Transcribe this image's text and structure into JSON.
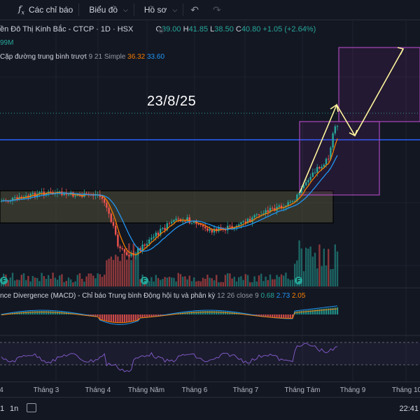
{
  "toolbar": {
    "indicators_label": "Các chỉ báo",
    "chart_type_label": "Biểu đồ",
    "profile_label": "Hồ sơ"
  },
  "legend": {
    "title": "ền Đô Thị Kinh Bắc - CTCP · 1D · HSX",
    "o_label": "O",
    "o_value": "39.00",
    "h_label": "H",
    "h_value": "41.85",
    "l_label": "L",
    "l_value": "38.50",
    "c_label": "C",
    "c_value": "40.80",
    "change": "+1.05 (+2.64%)"
  },
  "volume_text": "99M",
  "ma": {
    "label": "Cặp đường trung bình trượt",
    "params": "9 21 Simple",
    "v1": "36.32",
    "v2": "33.60"
  },
  "annotation": "23/8/25",
  "macd": {
    "label": "nce Divergence (MACD) - Chỉ báo Trung bình Động hội tụ và phân kỳ",
    "params": "12 26 close 9",
    "v1": "0.68",
    "v2": "2.73",
    "v3": "2.05"
  },
  "xaxis": [
    "4",
    "Tháng 3",
    "Tháng 4",
    "Tháng Năm",
    "Tháng 6",
    "Tháng 7",
    "Tháng Tám",
    "Tháng 9",
    "Tháng 10"
  ],
  "bottom": {
    "range1": "1",
    "range2": "1n",
    "time": "22:41"
  },
  "colors": {
    "up": "#26a69a",
    "down": "#ef5350",
    "ma_fast": "#f57c00",
    "ma_slow": "#2196f3",
    "box_purple": "#9c27b0",
    "arrow": "#fff59d",
    "hline": "#2962ff"
  },
  "icons": [
    "fx-icon",
    "chevron-down-icon",
    "undo-icon",
    "redo-icon",
    "calendar-icon",
    "dividend-f-icon"
  ]
}
